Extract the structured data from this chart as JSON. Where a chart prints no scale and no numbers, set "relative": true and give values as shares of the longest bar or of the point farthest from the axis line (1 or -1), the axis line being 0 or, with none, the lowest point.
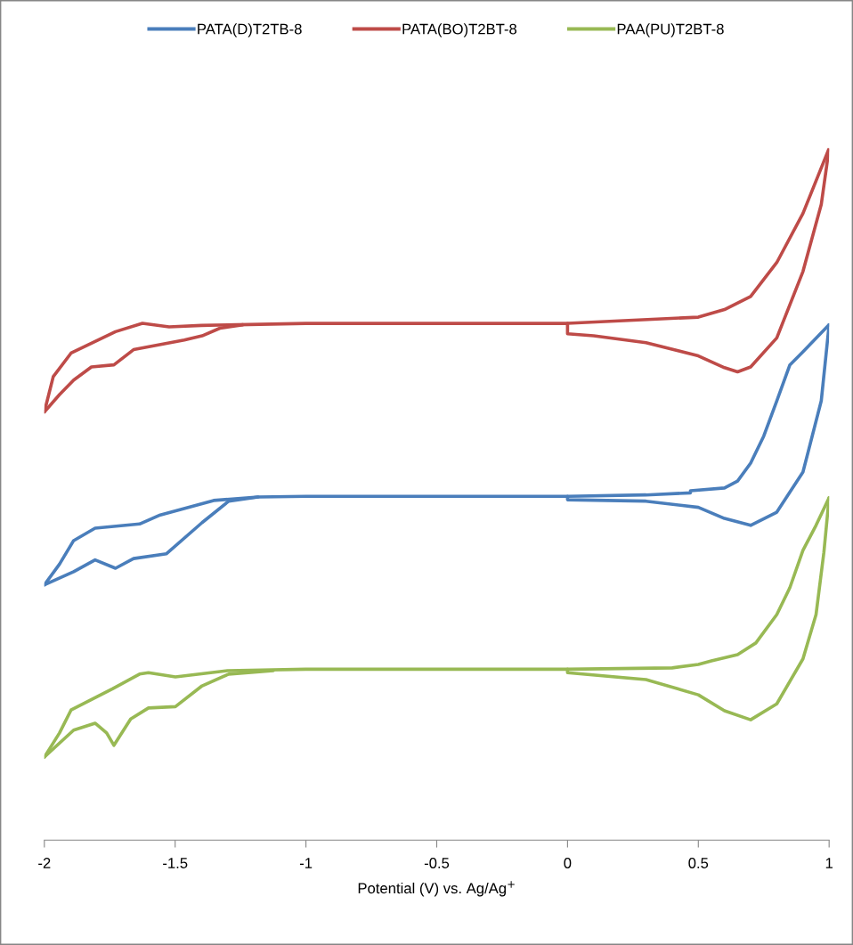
{
  "chart_data": {
    "type": "line",
    "relative": true,
    "xlabel": "Potential (V) vs. Ag/Ag$^{+}$",
    "xlim": [
      -2,
      1
    ],
    "xticks": [
      -2,
      -1.5,
      -1,
      -0.5,
      0,
      0.5,
      1
    ],
    "legend": "top",
    "marker": "none",
    "line_style": "solid",
    "series": [
      {
        "name": "PATA(D)T2TB-8",
        "color": "#4a7ebb",
        "x": [
          -2,
          -1.942,
          -1.888,
          -1.806,
          -1.636,
          -1.557,
          -1.353,
          -1.183,
          -1.0,
          -0.5,
          0,
          0.3,
          0.47,
          0.47,
          0.6,
          0.65,
          0.7,
          0.75,
          0.8,
          0.85,
          0.9,
          1.0
        ],
        "values": [
          0.369,
          0.399,
          0.433,
          0.451,
          0.457,
          0.47,
          0.491,
          0.496,
          0.497,
          0.497,
          0.497,
          0.499,
          0.502,
          0.505,
          0.509,
          0.519,
          0.545,
          0.584,
          0.635,
          0.687,
          0.706,
          0.745
        ]
      },
      {
        "color": "#4a7ebb",
        "x": [
          -2,
          -1.888,
          -1.806,
          -1.728,
          -1.659,
          -1.533,
          -1.397,
          -1.295,
          -1.183,
          -0.5,
          0,
          0,
          0.3,
          0.5,
          0.6,
          0.7,
          0.8,
          0.9,
          0.97,
          1.0
        ],
        "values": [
          0.369,
          0.388,
          0.405,
          0.393,
          0.407,
          0.414,
          0.459,
          0.49,
          0.496,
          null,
          0.497,
          0.492,
          0.49,
          0.481,
          0.465,
          0.455,
          0.474,
          0.532,
          0.635,
          0.745
        ]
      },
      {
        "name": "PATA(BO)T2BT-8",
        "color": "#be4b48",
        "x": [
          -2,
          -1.966,
          -1.898,
          -1.728,
          -1.625,
          -1.523,
          -1.4,
          -1.0,
          -0.5,
          0,
          0.5,
          0.6,
          0.7,
          0.8,
          0.9,
          1.0
        ],
        "values": [
          0.619,
          0.67,
          0.704,
          0.735,
          0.747,
          0.742,
          0.744,
          0.747,
          0.747,
          0.747,
          0.756,
          0.767,
          0.786,
          0.835,
          0.906,
          1.0
        ]
      },
      {
        "color": "#be4b48",
        "x": [
          -2,
          -1.942,
          -1.888,
          -1.82,
          -1.734,
          -1.659,
          -1.465,
          -1.397,
          -1.329,
          -1.241,
          -0.5,
          0,
          0,
          0.1,
          0.3,
          0.5,
          0.6,
          0.65,
          0.7,
          0.8,
          0.9,
          0.97,
          1.0
        ],
        "values": [
          0.619,
          0.644,
          0.665,
          0.684,
          0.687,
          0.709,
          0.723,
          0.729,
          0.74,
          0.745,
          null,
          0.747,
          0.732,
          0.729,
          0.719,
          0.7,
          0.683,
          0.677,
          0.684,
          0.726,
          0.822,
          0.919,
          1.0
        ]
      },
      {
        "name": "PAA(PU)T2BT-8",
        "color": "#98b954",
        "x": [
          -2,
          -1.942,
          -1.898,
          -1.738,
          -1.636,
          -1.602,
          -1.499,
          -1.3,
          -1.0,
          -0.5,
          0,
          0.4,
          0.5,
          0.55,
          0.65,
          0.72,
          0.8,
          0.85,
          0.9,
          0.95,
          1.0
        ],
        "values": [
          0.12,
          0.155,
          0.188,
          0.219,
          0.24,
          0.242,
          0.236,
          0.245,
          0.247,
          0.247,
          0.247,
          0.249,
          0.254,
          0.259,
          0.268,
          0.285,
          0.326,
          0.365,
          0.419,
          0.455,
          0.495
        ]
      },
      {
        "color": "#98b954",
        "x": [
          -2,
          -1.888,
          -1.806,
          -1.762,
          -1.734,
          -1.67,
          -1.602,
          -1.499,
          -1.397,
          -1.295,
          -1.125,
          -0.5,
          0,
          0,
          0.3,
          0.5,
          0.6,
          0.7,
          0.8,
          0.9,
          0.95,
          0.98,
          1.0
        ],
        "values": [
          0.12,
          0.159,
          0.169,
          0.155,
          0.137,
          0.175,
          0.191,
          0.193,
          0.223,
          0.24,
          0.245,
          null,
          0.247,
          0.242,
          0.232,
          0.21,
          0.187,
          0.174,
          0.197,
          0.262,
          0.326,
          0.416,
          0.495
        ]
      }
    ]
  }
}
